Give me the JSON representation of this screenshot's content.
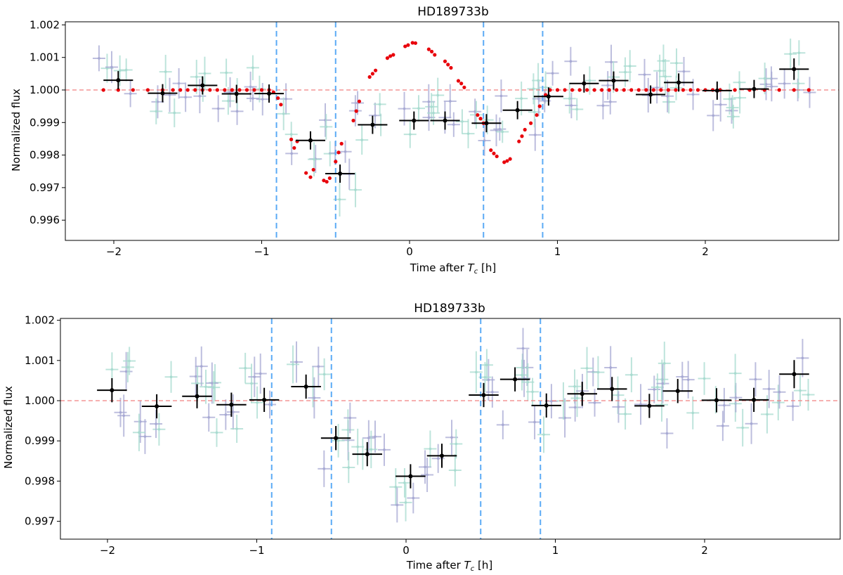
{
  "figure": {
    "panels": [
      "top",
      "bottom"
    ]
  },
  "colors": {
    "binned": "#000000",
    "model": "#e8000b",
    "reference_line": "#f08080",
    "contact_lines": "#5aaaf5",
    "raw_purple": "#a7a9d3",
    "raw_teal": "#a8dbd0"
  },
  "chart_data": [
    {
      "type": "scatter",
      "title": "HD189733b",
      "xlabel_prefix": "Time after ",
      "xlabel_symbol": "T",
      "xlabel_sub": "c",
      "xlabel_suffix": " [h]",
      "ylabel": "Normalized flux",
      "xlim": [
        -2.35,
        2.9
      ],
      "ylim": [
        0.99543,
        1.00218
      ],
      "xticks": [
        -2,
        -1,
        0,
        1,
        2
      ],
      "xtick_labels": [
        "−2",
        "−1",
        "0",
        "1",
        "2"
      ],
      "yticks": [
        0.996,
        0.997,
        0.998,
        0.999,
        1.0,
        1.001,
        1.002
      ],
      "ytick_labels": [
        "0.996",
        "0.997",
        "0.998",
        "0.999",
        "1.000",
        "1.001",
        "1.002"
      ],
      "grid": false,
      "reference_line": 1.0,
      "contact_lines": [
        -0.9,
        -0.5,
        0.5,
        0.9
      ],
      "series": [
        {
          "role": "binned",
          "x": [
            -1.97,
            -1.67,
            -1.4,
            -1.17,
            -0.95,
            -0.67,
            -0.47,
            -0.25,
            0.03,
            0.24,
            0.52,
            0.73,
            0.94,
            1.18,
            1.38,
            1.63,
            1.82,
            2.08,
            2.33,
            2.6
          ],
          "y": [
            1.0003,
            0.9999,
            1.00014,
            0.99988,
            0.99989,
            0.99845,
            0.99743,
            0.99893,
            0.99906,
            0.99906,
            0.99898,
            0.99938,
            0.9998,
            1.0002,
            1.00029,
            0.99986,
            1.00023,
            0.99998,
            1.00003,
            1.00064
          ],
          "xerr": 0.1,
          "yerr": [
            0.00028,
            0.00028,
            0.00028,
            0.00028,
            0.00028,
            0.00028,
            0.00028,
            0.00028,
            0.00028,
            0.00028,
            0.00028,
            0.00028,
            0.00028,
            0.00028,
            0.00028,
            0.00028,
            0.00028,
            0.00028,
            0.00028,
            0.00033
          ]
        },
        {
          "role": "model",
          "x": [
            -2.07,
            -1.97,
            -1.87,
            -1.77,
            -1.67,
            -1.6,
            -1.55,
            -1.5,
            -1.45,
            -1.4,
            -1.35,
            -1.3,
            -1.25,
            -1.2,
            -1.15,
            -1.1,
            -1.05,
            -1.0,
            -0.95,
            -0.92,
            -0.89,
            -0.87,
            -0.8,
            -0.78,
            -0.76,
            -0.7,
            -0.67,
            -0.65,
            -0.58,
            -0.56,
            -0.54,
            -0.5,
            -0.48,
            -0.46,
            -0.38,
            -0.36,
            -0.34,
            -0.27,
            -0.25,
            -0.23,
            -0.15,
            -0.13,
            -0.11,
            -0.03,
            -0.01,
            0.02,
            0.04,
            0.13,
            0.15,
            0.17,
            0.24,
            0.26,
            0.28,
            0.33,
            0.35,
            0.37,
            0.46,
            0.48,
            0.5,
            0.55,
            0.57,
            0.59,
            0.64,
            0.66,
            0.68,
            0.74,
            0.76,
            0.78,
            0.82,
            0.86,
            0.88,
            0.92,
            0.95,
            1.0,
            1.05,
            1.1,
            1.15,
            1.2,
            1.25,
            1.3,
            1.35,
            1.4,
            1.45,
            1.5,
            1.55,
            1.6,
            1.65,
            1.7,
            1.75,
            1.8,
            1.85,
            1.9,
            1.95,
            2.0,
            2.05,
            2.1,
            2.2,
            2.3,
            2.4,
            2.5,
            2.6,
            2.7
          ],
          "y": [
            1.0,
            1.0,
            1.0,
            1.0,
            1.0,
            1.0,
            1.0,
            1.0,
            1.0,
            1.0,
            1.0,
            1.0,
            1.0,
            1.0,
            1.0,
            1.0,
            1.0,
            1.0,
            1.0,
            0.99993,
            0.99975,
            0.99955,
            0.99848,
            0.99822,
            0.99842,
            0.99745,
            0.99732,
            0.99755,
            0.99722,
            0.99718,
            0.99729,
            0.9978,
            0.99808,
            0.99835,
            0.99906,
            0.99935,
            0.99965,
            1.0004,
            1.0005,
            1.0006,
            1.00098,
            1.00104,
            1.00108,
            1.00134,
            1.00138,
            1.00145,
            1.00144,
            1.00125,
            1.00118,
            1.00108,
            1.00088,
            1.00078,
            1.00068,
            1.00028,
            1.0002,
            1.00008,
            0.99923,
            0.99912,
            0.99898,
            0.99815,
            0.99805,
            0.99796,
            0.99778,
            0.99782,
            0.99788,
            0.99842,
            0.99858,
            0.99878,
            0.99898,
            0.99923,
            0.9995,
            0.99985,
            1.0,
            1.0,
            1.0,
            1.0,
            1.0,
            1.0,
            1.0,
            1.0,
            1.0,
            1.0,
            1.0,
            1.0,
            1.0,
            1.0,
            1.0,
            1.0,
            1.0,
            1.0,
            1.0,
            1.0,
            1.0,
            1.0,
            1.0,
            1.0,
            1.0,
            1.0,
            1.0,
            1.0,
            1.0,
            1.0
          ]
        }
      ]
    },
    {
      "type": "scatter",
      "title": "HD189733b",
      "xlabel_prefix": "Time after ",
      "xlabel_symbol": "T",
      "xlabel_sub": "c",
      "xlabel_suffix": " [h]",
      "ylabel": "Normalized flux",
      "xlim": [
        -2.35,
        2.9
      ],
      "ylim": [
        0.99637,
        1.00215
      ],
      "xticks": [
        -2,
        -1,
        0,
        1,
        2
      ],
      "xtick_labels": [
        "−2",
        "−1",
        "0",
        "1",
        "2"
      ],
      "yticks": [
        0.997,
        0.998,
        0.999,
        1.0,
        1.001,
        1.002
      ],
      "ytick_labels": [
        "0.997",
        "0.998",
        "0.999",
        "1.000",
        "1.001",
        "1.002"
      ],
      "grid": false,
      "reference_line": 1.0,
      "contact_lines": [
        -0.9,
        -0.5,
        0.5,
        0.9
      ],
      "series": [
        {
          "role": "binned",
          "x": [
            -1.97,
            -1.67,
            -1.4,
            -1.17,
            -0.95,
            -0.67,
            -0.47,
            -0.26,
            0.03,
            0.24,
            0.52,
            0.73,
            0.94,
            1.18,
            1.38,
            1.63,
            1.82,
            2.08,
            2.33,
            2.6
          ],
          "y": [
            1.00026,
            0.99986,
            1.00011,
            0.9999,
            1.00002,
            1.00035,
            0.99907,
            0.99867,
            0.99812,
            0.99863,
            1.00014,
            1.00053,
            0.99988,
            1.00017,
            1.00029,
            0.99987,
            1.00024,
            1.00001,
            1.00002,
            1.00066
          ],
          "xerr": 0.1,
          "yerr": [
            0.0003,
            0.0003,
            0.0003,
            0.0003,
            0.0003,
            0.0003,
            0.0003,
            0.0003,
            0.0003,
            0.0003,
            0.0003,
            0.0003,
            0.0003,
            0.0003,
            0.0003,
            0.0003,
            0.0003,
            0.0003,
            0.0003,
            0.00035
          ]
        }
      ]
    }
  ]
}
